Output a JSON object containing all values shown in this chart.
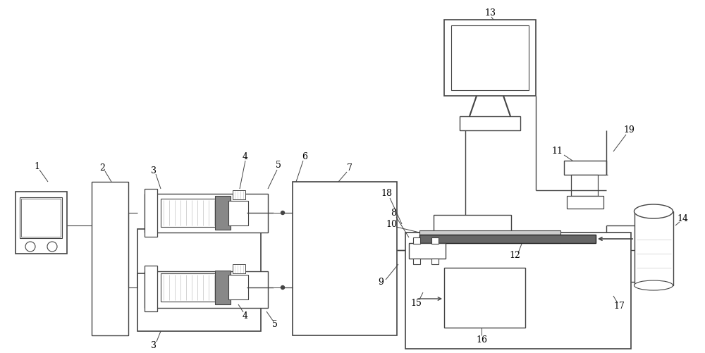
{
  "line_color": "#444444",
  "dark_color": "#222222",
  "gray_color": "#aaaaaa",
  "light_gray": "#cccccc",
  "medium_gray": "#888888",
  "dark_gray": "#666666"
}
